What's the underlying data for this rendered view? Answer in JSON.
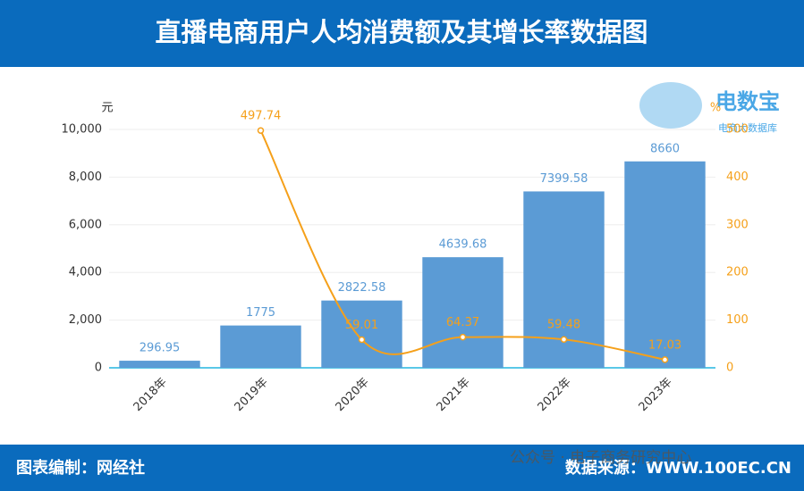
{
  "chart_data": {
    "type": "bar_line",
    "title": "直播电商用户人均消费额及其增长率数据图",
    "y_unit": "元",
    "y2_unit": "%",
    "categories": [
      "2018年",
      "2019年",
      "2020年",
      "2021年",
      "2022年",
      "2023年"
    ],
    "series": [
      {
        "type": "bar",
        "color": "#5b9bd5",
        "values": [
          296.95,
          1775,
          2822.58,
          4639.68,
          7399.58,
          8660
        ]
      },
      {
        "type": "line",
        "color": "#f5a01a",
        "axis": "y2",
        "values": [
          null,
          497.74,
          59.01,
          64.37,
          59.48,
          17.03
        ]
      }
    ],
    "ylim": [
      0,
      10000
    ],
    "yticks": [
      0,
      {
        "value": 2000,
        "label": "2,000"
      },
      {
        "value": 4000,
        "label": "4,000"
      },
      {
        "value": 6000,
        "label": "6,000"
      },
      {
        "value": 8000,
        "label": "8,000"
      },
      {
        "value": 10000,
        "label": "10,000"
      }
    ],
    "y2lim": [
      0,
      500
    ],
    "y2ticks": [
      0,
      100,
      200,
      300,
      400,
      500
    ],
    "grid": true,
    "logo": "电数宝",
    "logo_sub": "电商大数据库",
    "watermark": "公众号 · 电子商务研究中心",
    "footer_left": "图表编制：网经社",
    "footer_right": "数据来源：WWW.100EC.CN"
  }
}
